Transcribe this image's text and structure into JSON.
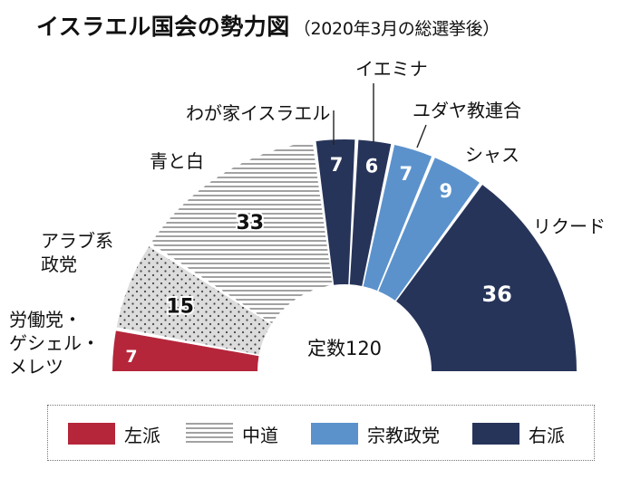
{
  "title": "イスラエル国会の勢力図",
  "subtitle": "（2020年3月の総選挙後）",
  "center_label": "定数120",
  "colors": {
    "left": "#b5263a",
    "center": "#ffffff",
    "religious": "#5b92cc",
    "right": "#27345a"
  },
  "chart_data": {
    "type": "pie",
    "shape": "half-donut",
    "total": 120,
    "slices": [
      {
        "party": "労働党・ゲシェル・メレツ",
        "seats": 7,
        "bloc": "左派",
        "fill": "solid",
        "color": "#b5263a"
      },
      {
        "party": "アラブ系政党",
        "seats": 15,
        "bloc": "アラブ系政党",
        "fill": "dots",
        "color": "#d9d9d9"
      },
      {
        "party": "青と白",
        "seats": 33,
        "bloc": "中道",
        "fill": "horizontal-lines",
        "color": "#ffffff"
      },
      {
        "party": "わが家イスラエル",
        "seats": 7,
        "bloc": "右派",
        "fill": "solid",
        "color": "#27345a"
      },
      {
        "party": "イエミナ",
        "seats": 6,
        "bloc": "右派",
        "fill": "solid",
        "color": "#27345a"
      },
      {
        "party": "ユダヤ教連合",
        "seats": 7,
        "bloc": "宗教政党",
        "fill": "solid",
        "color": "#5b92cc"
      },
      {
        "party": "シャス",
        "seats": 9,
        "bloc": "宗教政党",
        "fill": "solid",
        "color": "#5b92cc"
      },
      {
        "party": "リクード",
        "seats": 36,
        "bloc": "右派",
        "fill": "solid",
        "color": "#27345a"
      }
    ],
    "labels": [
      {
        "lines": [
          "労働党・",
          "ゲシェル・",
          "メレツ"
        ]
      },
      {
        "lines": [
          "アラブ系",
          "政党"
        ]
      },
      {
        "lines": [
          "青と白"
        ]
      },
      {
        "lines": [
          "わが家イスラエル"
        ]
      },
      {
        "lines": [
          "イエミナ"
        ]
      },
      {
        "lines": [
          "ユダヤ教連合"
        ]
      },
      {
        "lines": [
          "シャス"
        ]
      },
      {
        "lines": [
          "リクード"
        ]
      }
    ],
    "legend": [
      {
        "label": "左派",
        "fill": "solid",
        "color": "#b5263a"
      },
      {
        "label": "中道",
        "fill": "horizontal-lines",
        "color": "#ffffff"
      },
      {
        "label": "宗教政党",
        "fill": "solid",
        "color": "#5b92cc"
      },
      {
        "label": "右派",
        "fill": "solid",
        "color": "#27345a"
      }
    ]
  }
}
